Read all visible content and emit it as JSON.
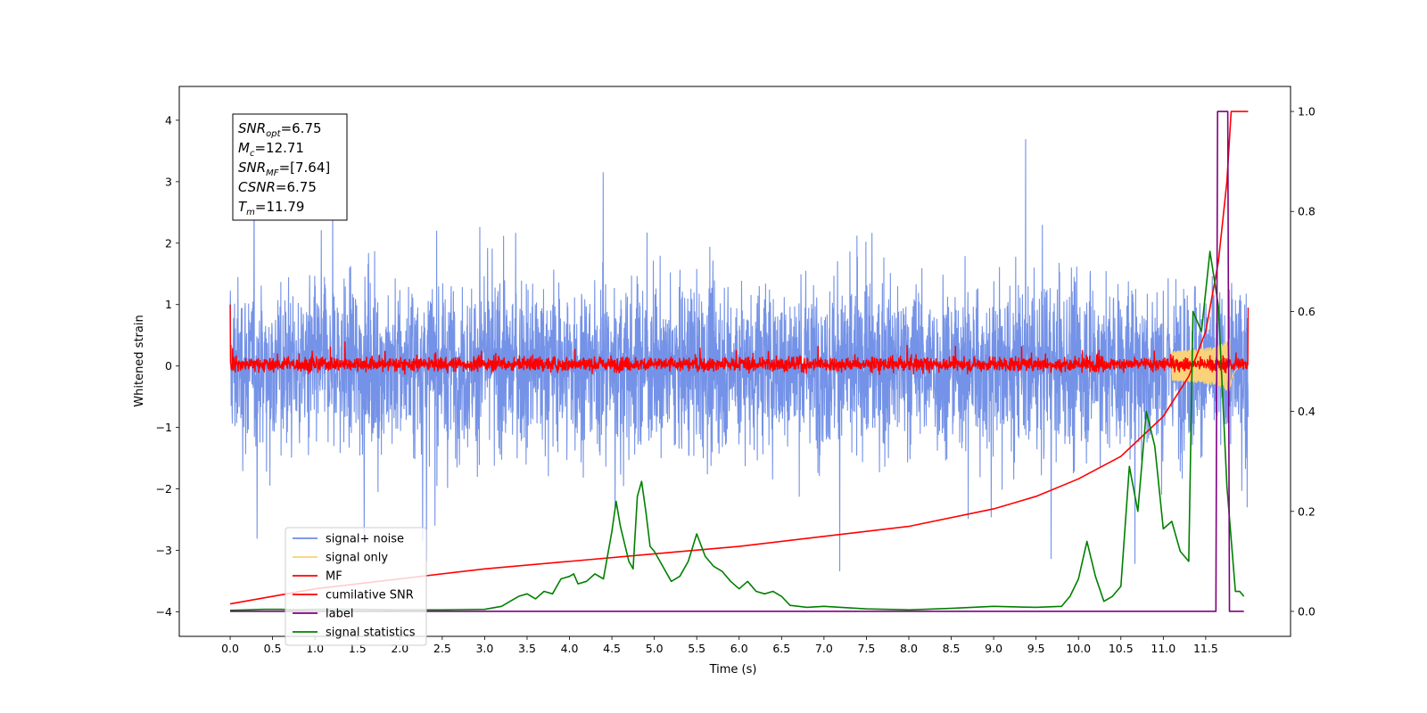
{
  "chart_data": {
    "type": "line",
    "xlabel": "Time (s)",
    "ylabel": "Whitened strain",
    "xlim": [
      -0.6,
      12.5
    ],
    "ylim": [
      -4.4,
      4.55
    ],
    "y2lim": [
      -0.05,
      1.05
    ],
    "x_ticks": [
      "0.0",
      "0.5",
      "1.0",
      "1.5",
      "2.0",
      "2.5",
      "3.0",
      "3.5",
      "4.0",
      "4.5",
      "5.0",
      "5.5",
      "6.0",
      "6.5",
      "7.0",
      "7.5",
      "8.0",
      "8.5",
      "9.0",
      "9.5",
      "10.0",
      "10.5",
      "11.0",
      "11.5"
    ],
    "y_ticks": [
      "4",
      "3",
      "2",
      "1",
      "0",
      "−1",
      "−2",
      "−3",
      "−4"
    ],
    "y2_ticks": [
      "1.0",
      "0.8",
      "0.6",
      "0.4",
      "0.2",
      "0.0"
    ],
    "annotation": [
      {
        "base": "SNR",
        "sub": "opt",
        "value": "=6.75"
      },
      {
        "base": "M",
        "sub": "c",
        "value": "=12.71"
      },
      {
        "base": "SNR",
        "sub": "MF",
        "value": "=[7.64]"
      },
      {
        "base": "CSNR",
        "sub": "",
        "value": "=6.75"
      },
      {
        "base": "T",
        "sub": "m",
        "value": "=11.79"
      }
    ],
    "legend": {
      "position": "lower-left",
      "entries": [
        {
          "label": "signal+ noise",
          "color": "#6d8ce6"
        },
        {
          "label": "signal only",
          "color": "#f9d27a"
        },
        {
          "label": "MF",
          "color": "#ff0000"
        },
        {
          "label": "cumilative SNR",
          "color": "#ff0000"
        },
        {
          "label": "label",
          "color": "#800080"
        },
        {
          "label": "signal statistics",
          "color": "#008000"
        }
      ]
    },
    "series": [
      {
        "name": "signal+ noise",
        "axis": "left",
        "color": "#6d8ce6",
        "description_values": {
          "x_start": 0.0,
          "x_end": 12.0,
          "approx_range": [
            -3.8,
            4.15
          ]
        }
      },
      {
        "name": "signal only",
        "axis": "left",
        "color": "#f9d27a",
        "chirp": {
          "x_start": 11.1,
          "x_peak": 11.79,
          "x_end": 12.0,
          "peak_amplitude": 0.45
        }
      },
      {
        "name": "MF",
        "axis": "left",
        "color": "#ff0000",
        "description_values": {
          "x_start": 0.0,
          "x_end": 12.0,
          "approx_range": [
            -0.2,
            0.45
          ],
          "start_spike": 1.0,
          "end_spike": 0.95
        }
      },
      {
        "name": "cumilative SNR",
        "axis": "right",
        "color": "#ff0000",
        "x": [
          0.0,
          1.0,
          2.0,
          3.0,
          4.0,
          5.0,
          6.0,
          7.0,
          8.0,
          9.0,
          9.5,
          10.0,
          10.5,
          11.0,
          11.3,
          11.5,
          11.65,
          11.75,
          11.8,
          12.0
        ],
        "values": [
          0.015,
          0.045,
          0.065,
          0.085,
          0.1,
          0.115,
          0.13,
          0.15,
          0.17,
          0.205,
          0.23,
          0.265,
          0.31,
          0.39,
          0.47,
          0.56,
          0.7,
          0.86,
          1.0,
          1.0
        ]
      },
      {
        "name": "label",
        "axis": "right",
        "color": "#800080",
        "x": [
          0.0,
          11.62,
          11.64,
          11.76,
          11.78,
          11.95
        ],
        "values": [
          0.0,
          0.0,
          1.0,
          1.0,
          0.0,
          0.0
        ]
      },
      {
        "name": "signal statistics",
        "axis": "right",
        "color": "#008000",
        "x": [
          0.0,
          0.2,
          0.4,
          0.6,
          0.8,
          1.0,
          1.5,
          2.0,
          2.5,
          3.0,
          3.2,
          3.3,
          3.4,
          3.5,
          3.6,
          3.7,
          3.8,
          3.9,
          4.0,
          4.05,
          4.1,
          4.2,
          4.3,
          4.4,
          4.5,
          4.55,
          4.6,
          4.7,
          4.75,
          4.8,
          4.85,
          4.9,
          4.95,
          5.0,
          5.1,
          5.2,
          5.3,
          5.4,
          5.5,
          5.6,
          5.7,
          5.8,
          5.9,
          6.0,
          6.1,
          6.2,
          6.3,
          6.4,
          6.5,
          6.6,
          6.8,
          7.0,
          7.5,
          8.0,
          8.5,
          9.0,
          9.5,
          9.8,
          9.9,
          10.0,
          10.1,
          10.2,
          10.3,
          10.4,
          10.5,
          10.6,
          10.7,
          10.8,
          10.9,
          11.0,
          11.1,
          11.2,
          11.3,
          11.35,
          11.45,
          11.55,
          11.65,
          11.75,
          11.85,
          11.9,
          11.95
        ],
        "values": [
          0.002,
          0.003,
          0.004,
          0.004,
          0.003,
          0.004,
          0.004,
          0.003,
          0.003,
          0.004,
          0.01,
          0.02,
          0.03,
          0.035,
          0.025,
          0.04,
          0.035,
          0.065,
          0.07,
          0.075,
          0.055,
          0.06,
          0.075,
          0.065,
          0.16,
          0.22,
          0.17,
          0.1,
          0.085,
          0.23,
          0.26,
          0.2,
          0.13,
          0.12,
          0.09,
          0.06,
          0.07,
          0.1,
          0.155,
          0.11,
          0.09,
          0.08,
          0.06,
          0.045,
          0.06,
          0.04,
          0.035,
          0.04,
          0.03,
          0.012,
          0.008,
          0.01,
          0.005,
          0.003,
          0.006,
          0.01,
          0.008,
          0.01,
          0.03,
          0.065,
          0.14,
          0.07,
          0.02,
          0.03,
          0.05,
          0.29,
          0.2,
          0.4,
          0.33,
          0.165,
          0.18,
          0.12,
          0.1,
          0.6,
          0.56,
          0.72,
          0.61,
          0.25,
          0.04,
          0.04,
          0.03
        ]
      }
    ]
  }
}
